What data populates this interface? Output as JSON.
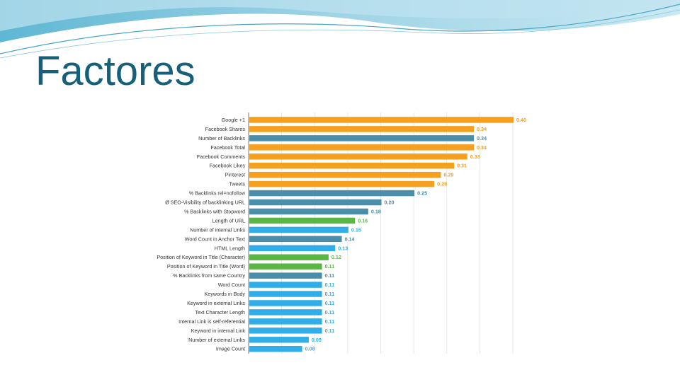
{
  "slide": {
    "title": "Factores"
  },
  "colors": {
    "title": "#17607a",
    "orange": "#f5a01e",
    "steel": "#4a8eaa",
    "green": "#5bb646",
    "blue": "#31aee8",
    "banner_light": "#bfe3ef",
    "banner_mid": "#5fb7d4"
  },
  "chart_data": {
    "type": "bar",
    "orientation": "horizontal",
    "xlim": [
      0,
      0.45
    ],
    "grid": true,
    "categories": [
      "Google +1",
      "Facebook Shares",
      "Number of Backlinks",
      "Facebook Total",
      "Facebook Comments",
      "Facebook Likes",
      "Pinterest",
      "Tweets",
      "% Backlinks rel=nofollow",
      "Ø SEO-Visibility of backlinking URL",
      "% Backlinks with Stopword",
      "Length of URL",
      "Number of internal Links",
      "Word Count in Anchor Text",
      "HTML Length",
      "Position of Keyword in Title (Character)",
      "Position of Keyword in Title (Word)",
      "% Backlinks from same Country",
      "Word Count",
      "Keywords in Body",
      "Keyword in external Links",
      "Text Character Length",
      "Internal Link is self-referential",
      "Keyword in internal Link",
      "Number of external Links",
      "Image Count"
    ],
    "values": [
      0.4,
      0.34,
      0.34,
      0.34,
      0.33,
      0.31,
      0.29,
      0.28,
      0.25,
      0.2,
      0.18,
      0.16,
      0.15,
      0.14,
      0.13,
      0.12,
      0.11,
      0.11,
      0.11,
      0.11,
      0.11,
      0.11,
      0.11,
      0.11,
      0.09,
      0.08
    ],
    "value_labels": [
      "0.40",
      "0.34",
      "0.34",
      "0.34",
      "0.33",
      "0.31",
      "0.29",
      "0.28",
      "0.25",
      "0.20",
      "0.18",
      "0.16",
      "0.15",
      "0.14",
      "0.13",
      "0.12",
      "0.11",
      "0.11",
      "0.11",
      "0.11",
      "0.11",
      "0.11",
      "0.11",
      "0.11",
      "0.09",
      "0.08"
    ],
    "bar_colors": [
      "orange",
      "orange",
      "steel",
      "orange",
      "orange",
      "orange",
      "orange",
      "orange",
      "steel",
      "steel",
      "steel",
      "green",
      "blue",
      "steel",
      "blue",
      "green",
      "green",
      "steel",
      "blue",
      "blue",
      "blue",
      "blue",
      "blue",
      "blue",
      "blue",
      "blue"
    ]
  }
}
